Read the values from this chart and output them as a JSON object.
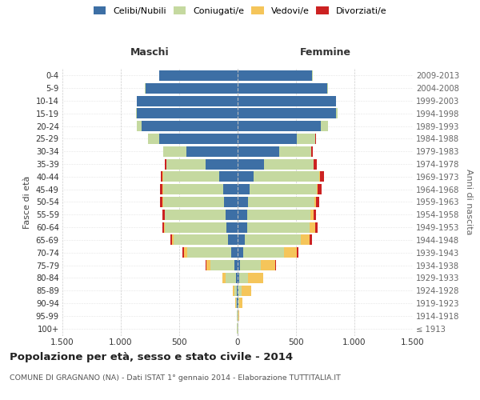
{
  "age_groups": [
    "100+",
    "95-99",
    "90-94",
    "85-89",
    "80-84",
    "75-79",
    "70-74",
    "65-69",
    "60-64",
    "55-59",
    "50-54",
    "45-49",
    "40-44",
    "35-39",
    "30-34",
    "25-29",
    "20-24",
    "15-19",
    "10-14",
    "5-9",
    "0-4"
  ],
  "birth_years": [
    "≤ 1913",
    "1914-1918",
    "1919-1923",
    "1924-1928",
    "1929-1933",
    "1934-1938",
    "1939-1943",
    "1944-1948",
    "1949-1953",
    "1954-1958",
    "1959-1963",
    "1964-1968",
    "1969-1973",
    "1974-1978",
    "1979-1983",
    "1984-1988",
    "1989-1993",
    "1994-1998",
    "1999-2003",
    "2004-2008",
    "2009-2013"
  ],
  "maschi": {
    "celibi": [
      2,
      3,
      5,
      8,
      15,
      25,
      55,
      80,
      95,
      105,
      115,
      125,
      155,
      275,
      440,
      670,
      820,
      860,
      860,
      790,
      670
    ],
    "coniugati": [
      2,
      4,
      8,
      22,
      85,
      205,
      375,
      465,
      525,
      515,
      525,
      515,
      485,
      335,
      195,
      95,
      45,
      10,
      4,
      3,
      2
    ],
    "vedovi": [
      1,
      2,
      5,
      12,
      28,
      38,
      32,
      18,
      9,
      5,
      4,
      3,
      2,
      1,
      1,
      0,
      0,
      0,
      0,
      0,
      0
    ],
    "divorziati": [
      0,
      0,
      0,
      2,
      4,
      5,
      9,
      14,
      18,
      22,
      18,
      18,
      13,
      9,
      4,
      2,
      1,
      0,
      0,
      0,
      0
    ]
  },
  "femmine": {
    "nubili": [
      2,
      3,
      6,
      9,
      13,
      22,
      45,
      65,
      80,
      85,
      90,
      100,
      135,
      225,
      355,
      510,
      710,
      840,
      840,
      770,
      640
    ],
    "coniugate": [
      2,
      4,
      9,
      28,
      78,
      175,
      355,
      475,
      535,
      535,
      565,
      575,
      565,
      425,
      275,
      155,
      65,
      18,
      4,
      2,
      1
    ],
    "vedove": [
      2,
      7,
      28,
      78,
      125,
      128,
      108,
      78,
      48,
      28,
      18,
      9,
      4,
      2,
      1,
      1,
      0,
      0,
      0,
      0,
      0
    ],
    "divorziate": [
      0,
      0,
      1,
      2,
      4,
      7,
      11,
      16,
      23,
      23,
      28,
      33,
      38,
      28,
      13,
      4,
      2,
      1,
      0,
      0,
      0
    ]
  },
  "colors": {
    "celibe": "#3d6fa5",
    "coniugato": "#c5d9a0",
    "vedovo": "#f5c55a",
    "divorziato": "#cc2222"
  },
  "xlim": 1500,
  "title": "Popolazione per età, sesso e stato civile - 2014",
  "subtitle": "COMUNE DI GRAGNANO (NA) - Dati ISTAT 1° gennaio 2014 - Elaborazione TUTTITALIA.IT",
  "ylabel_left": "Fasce di età",
  "ylabel_right": "Anni di nascita",
  "xlabel_maschi": "Maschi",
  "xlabel_femmine": "Femmine",
  "bg_color": "#ffffff",
  "grid_color": "#cccccc",
  "legend_labels": [
    "Celibi/Nubili",
    "Coniugati/e",
    "Vedovi/e",
    "Divorziati/e"
  ]
}
